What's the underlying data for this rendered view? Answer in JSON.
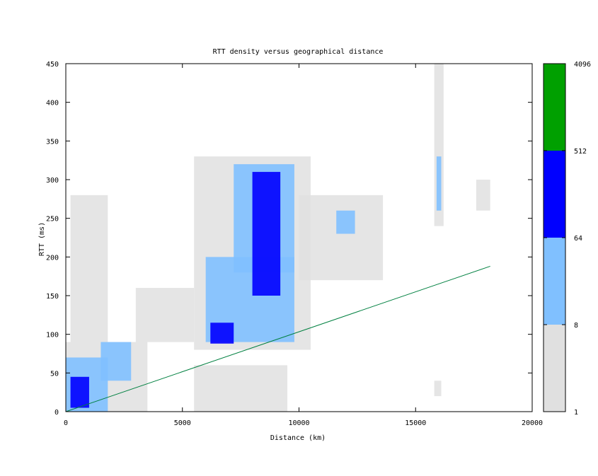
{
  "chart_data": {
    "type": "heatmap",
    "title": "RTT density versus geographical distance",
    "xlabel": "Distance (km)",
    "ylabel": "RTT (ms)",
    "xlim": [
      0,
      20000
    ],
    "ylim": [
      0,
      450
    ],
    "x_ticks": [
      0,
      5000,
      10000,
      15000,
      20000
    ],
    "y_ticks": [
      0,
      50,
      100,
      150,
      200,
      250,
      300,
      350,
      400,
      450
    ],
    "colorbar": {
      "scale": "log2",
      "tick_labels": [
        "1",
        "8",
        "64",
        "512",
        "4096"
      ],
      "bins": [
        {
          "min": 1,
          "max": 8,
          "color": "#e0e0e0"
        },
        {
          "min": 8,
          "max": 64,
          "color": "#80c0ff"
        },
        {
          "min": 64,
          "max": 512,
          "color": "#0000ff"
        },
        {
          "min": 512,
          "max": 4096,
          "color": "#00a000"
        }
      ]
    },
    "reference_line": {
      "color": "#008040",
      "x": [
        0,
        18200
      ],
      "y": [
        0,
        188
      ]
    },
    "density_regions": [
      {
        "level": 1,
        "x": [
          0,
          3500
        ],
        "y": [
          0,
          90
        ]
      },
      {
        "level": 1,
        "x": [
          200,
          1800
        ],
        "y": [
          90,
          280
        ]
      },
      {
        "level": 1,
        "x": [
          3000,
          5500
        ],
        "y": [
          90,
          160
        ]
      },
      {
        "level": 1,
        "x": [
          5500,
          10500
        ],
        "y": [
          80,
          330
        ]
      },
      {
        "level": 1,
        "x": [
          5500,
          9500
        ],
        "y": [
          0,
          60
        ]
      },
      {
        "level": 1,
        "x": [
          10000,
          13600
        ],
        "y": [
          170,
          280
        ]
      },
      {
        "level": 1,
        "x": [
          15800,
          16200
        ],
        "y": [
          240,
          450
        ]
      },
      {
        "level": 1,
        "x": [
          15800,
          16100
        ],
        "y": [
          20,
          40
        ]
      },
      {
        "level": 1,
        "x": [
          17600,
          18200
        ],
        "y": [
          260,
          300
        ]
      },
      {
        "level": 2,
        "x": [
          0,
          1800
        ],
        "y": [
          0,
          70
        ]
      },
      {
        "level": 2,
        "x": [
          1500,
          2800
        ],
        "y": [
          40,
          90
        ]
      },
      {
        "level": 2,
        "x": [
          6000,
          9800
        ],
        "y": [
          90,
          200
        ]
      },
      {
        "level": 2,
        "x": [
          7200,
          9800
        ],
        "y": [
          180,
          320
        ]
      },
      {
        "level": 2,
        "x": [
          15900,
          16100
        ],
        "y": [
          260,
          330
        ]
      },
      {
        "level": 2,
        "x": [
          11600,
          12400
        ],
        "y": [
          230,
          260
        ]
      },
      {
        "level": 3,
        "x": [
          200,
          1000
        ],
        "y": [
          5,
          45
        ]
      },
      {
        "level": 3,
        "x": [
          6200,
          7200
        ],
        "y": [
          88,
          115
        ]
      },
      {
        "level": 3,
        "x": [
          8000,
          9200
        ],
        "y": [
          150,
          310
        ]
      }
    ]
  }
}
